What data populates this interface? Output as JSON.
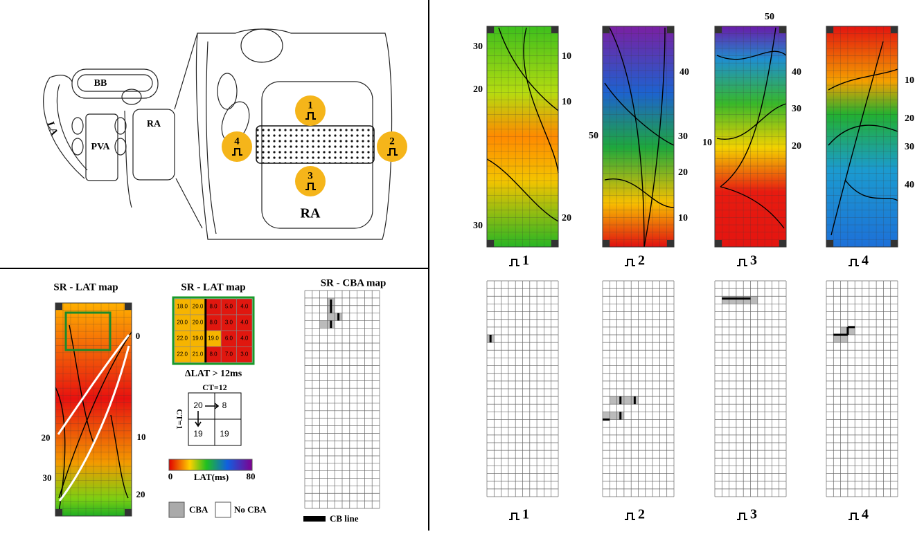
{
  "anatomy": {
    "labels": [
      "BB",
      "LA",
      "PVA",
      "RA",
      "RA"
    ],
    "pacing_sites": [
      "1",
      "2",
      "3",
      "4"
    ]
  },
  "sr_lat_map": {
    "title": "SR - LAT map",
    "contour_labels": [
      "0",
      "20",
      "10",
      "30",
      "20"
    ]
  },
  "zoom": {
    "title": "SR - LAT map",
    "cells": [
      [
        "18.0",
        "20.0",
        "8.0",
        "5.0",
        "4.0"
      ],
      [
        "20.0",
        "20.0",
        "8.0",
        "3.0",
        "4.0"
      ],
      [
        "22.0",
        "19.0",
        "19.0",
        "6.0",
        "4.0"
      ],
      [
        "22.0",
        "21.0",
        "8.0",
        "7.0",
        "3.0"
      ]
    ],
    "caption": "ΔLAT > 12ms",
    "ct_horizontal": "CT=12",
    "ct_vertical": "CT=1",
    "example": [
      "20",
      "8",
      "19",
      "19"
    ]
  },
  "colorbar": {
    "min": "0",
    "max": "80",
    "label": "LAT(ms)"
  },
  "legend": {
    "cba": "CBA",
    "no_cba": "No CBA",
    "cb_line": "CB line"
  },
  "cba_map": {
    "title": "SR - CBA map"
  },
  "paced_maps": [
    {
      "site": "1",
      "contour_labels": [
        "30",
        "20",
        "10",
        "10",
        "30",
        "20"
      ]
    },
    {
      "site": "2",
      "contour_labels": [
        "40",
        "50",
        "30",
        "20",
        "10"
      ]
    },
    {
      "site": "3",
      "contour_labels": [
        "50",
        "40",
        "30",
        "20",
        "10"
      ]
    },
    {
      "site": "4",
      "contour_labels": [
        "10",
        "20",
        "30",
        "40"
      ]
    }
  ],
  "cba_maps": [
    "1",
    "2",
    "3",
    "4"
  ]
}
